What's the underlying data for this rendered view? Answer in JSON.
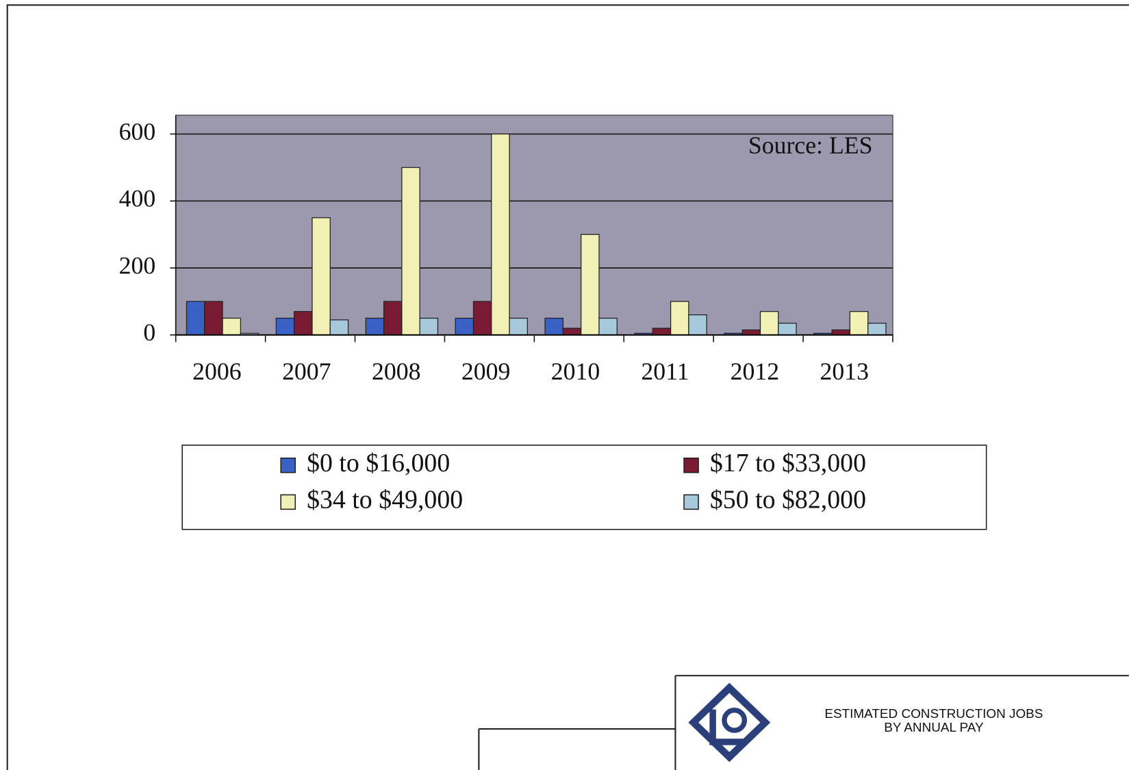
{
  "chart_data": {
    "type": "bar",
    "title_lines": [
      "ESTIMATED CONSTRUCTION JOBS",
      "BY ANNUAL PAY"
    ],
    "annotation": "Source:  LES",
    "categories": [
      "2006",
      "2007",
      "2008",
      "2009",
      "2010",
      "2011",
      "2012",
      "2013"
    ],
    "series": [
      {
        "name": "$0 to $16,000",
        "color": "#3a62c6",
        "values": [
          100,
          50,
          50,
          50,
          50,
          5,
          5,
          5
        ]
      },
      {
        "name": "$17 to $33,000",
        "color": "#7a1b34",
        "values": [
          100,
          70,
          100,
          100,
          20,
          20,
          15,
          15
        ]
      },
      {
        "name": "$34 to $49,000",
        "color": "#f1f1b5",
        "values": [
          50,
          350,
          500,
          600,
          300,
          100,
          70,
          70
        ]
      },
      {
        "name": "$50 to $82,000",
        "color": "#a8c8dc",
        "values": [
          5,
          45,
          50,
          50,
          50,
          60,
          35,
          35
        ]
      }
    ],
    "ylim": [
      0,
      656
    ],
    "yticks": [
      0,
      200,
      400,
      600
    ],
    "grid": true,
    "plot_background": "#9c98ad",
    "legend": "bottom"
  }
}
